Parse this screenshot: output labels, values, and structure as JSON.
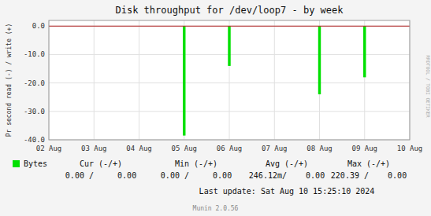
{
  "chart_data": {
    "type": "bar",
    "title": "Disk throughput for /dev/loop7 - by week",
    "y_label": "Pr second read (-) / write (+)",
    "xlim": [
      0,
      8
    ],
    "xticks": [
      {
        "value": 0,
        "label": "02 Aug"
      },
      {
        "value": 1,
        "label": "03 Aug"
      },
      {
        "value": 2,
        "label": "04 Aug"
      },
      {
        "value": 3,
        "label": "05 Aug"
      },
      {
        "value": 4,
        "label": "06 Aug"
      },
      {
        "value": 5,
        "label": "07 Aug"
      },
      {
        "value": 6,
        "label": "08 Aug"
      },
      {
        "value": 7,
        "label": "09 Aug"
      },
      {
        "value": 8,
        "label": "10 Aug"
      }
    ],
    "ylim": [
      -40.0,
      2.0
    ],
    "yticks": [
      {
        "value": 0.0,
        "label": "0.0"
      },
      {
        "value": -10.0,
        "label": "-10.0"
      },
      {
        "value": -20.0,
        "label": "-20.0"
      },
      {
        "value": -30.0,
        "label": "-30.0"
      },
      {
        "value": -40.0,
        "label": "-40.0"
      }
    ],
    "grid": true,
    "legend": "bottom",
    "series": [
      {
        "name": "Bytes",
        "color": "#00e000",
        "values": [
          -38.5,
          -14.0,
          -24.0,
          -18.0
        ],
        "x_left": [
          2.97,
          3.97,
          5.97,
          6.97
        ],
        "x_right": [
          3.03,
          4.03,
          6.03,
          7.03
        ]
      }
    ],
    "summary": [
      {
        "label": "Cur (-/+)",
        "value": "0.00 /     0.00"
      },
      {
        "label": "Min (-/+)",
        "value": "0.00 /     0.00"
      },
      {
        "label": "Avg (-/+)",
        "value": "246.12m/    0.00"
      },
      {
        "label": "Max (-/+)",
        "value": "220.39 /    0.00"
      }
    ],
    "annotations": [
      "Last update: Sat Aug 10 15:25:10 2024",
      "Munin 2.0.56",
      "RRDTOOL / TOBI OETIKER"
    ]
  }
}
